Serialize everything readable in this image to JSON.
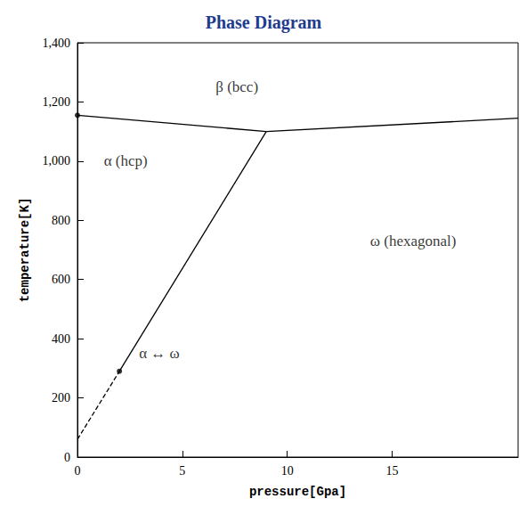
{
  "chart_data": {
    "type": "line",
    "title": "Phase Diagram",
    "x_label": "pressure[Gpa]",
    "y_label": "temperature[K]",
    "xlim": [
      0,
      21
    ],
    "xticks": [
      0,
      5,
      10,
      15
    ],
    "ylim": [
      0,
      1400
    ],
    "yticks": [
      0,
      200,
      400,
      600,
      800,
      1000,
      1200,
      1400
    ],
    "color": "#000000",
    "series": [
      {
        "type": "line",
        "line_style": "solid",
        "x": [
          0,
          9
        ],
        "values": [
          1155,
          1100
        ]
      },
      {
        "type": "line",
        "line_style": "solid",
        "x": [
          9,
          21
        ],
        "values": [
          1100,
          1145
        ]
      },
      {
        "type": "line",
        "line_style": "dashed",
        "x": [
          0,
          2
        ],
        "values": [
          60,
          290
        ]
      },
      {
        "type": "line",
        "line_style": "solid",
        "x": [
          2,
          9
        ],
        "values": [
          290,
          1100
        ]
      },
      {
        "type": "scatter",
        "marker": "circle",
        "x": [
          0,
          2
        ],
        "values": [
          1155,
          290
        ]
      }
    ],
    "annotations": [
      {
        "text": "β (bcc)",
        "x": 7.6,
        "y": 1250
      },
      {
        "text": "α (hcp)",
        "x": 2.3,
        "y": 1000
      },
      {
        "text": "ω (hexagonal)",
        "x": 16.0,
        "y": 730
      },
      {
        "text": "α ↔ ω",
        "x": 3.9,
        "y": 350
      }
    ]
  }
}
